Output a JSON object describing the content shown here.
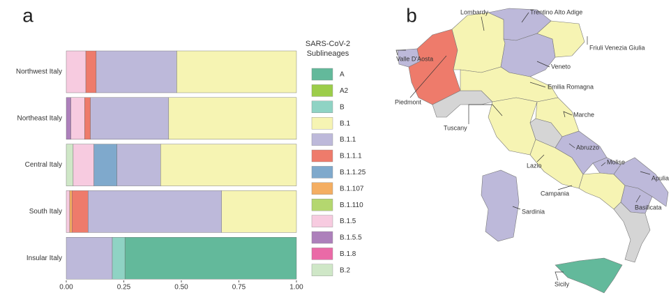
{
  "chart_data": {
    "type": "stacked_barh",
    "panel_label": "a",
    "legend_title": "SARS-CoV-2 Sublineages",
    "categories": [
      "Northwest Italy",
      "Northeast Italy",
      "Central Italy",
      "South Italy",
      "Insular Italy"
    ],
    "series": [
      {
        "name": "A",
        "color": "#63b99b",
        "values": [
          0,
          0,
          0,
          0,
          0.745
        ]
      },
      {
        "name": "A2",
        "color": "#9ccd4a",
        "values": [
          0,
          0,
          0,
          0,
          0
        ]
      },
      {
        "name": "B",
        "color": "#8fd3c4",
        "values": [
          0,
          0,
          0,
          0,
          0.055
        ]
      },
      {
        "name": "B.1",
        "color": "#f6f4b3",
        "values": [
          0.52,
          0.555,
          0.59,
          0.325,
          0
        ]
      },
      {
        "name": "B.1.1",
        "color": "#bdb9da",
        "values": [
          0.35,
          0.34,
          0.19,
          0.58,
          0.2
        ]
      },
      {
        "name": "B.1.1.1",
        "color": "#ee7b6b",
        "values": [
          0.045,
          0.025,
          0,
          0.07,
          0
        ]
      },
      {
        "name": "B.1.1.25",
        "color": "#7fa9cc",
        "values": [
          0,
          0,
          0.1,
          0,
          0
        ]
      },
      {
        "name": "B.1.107",
        "color": "#f4ae62",
        "values": [
          0,
          0,
          0,
          0.01,
          0
        ]
      },
      {
        "name": "B.1.110",
        "color": "#b4d76f",
        "values": [
          0,
          0,
          0,
          0,
          0
        ]
      },
      {
        "name": "B.1.5",
        "color": "#f7cbe0",
        "values": [
          0.085,
          0.06,
          0.09,
          0.015,
          0
        ]
      },
      {
        "name": "B.1.5.5",
        "color": "#ad80bb",
        "values": [
          0,
          0.02,
          0,
          0,
          0
        ]
      },
      {
        "name": "B.1.8",
        "color": "#ea6aa7",
        "values": [
          0,
          0,
          0,
          0,
          0
        ]
      },
      {
        "name": "B.2",
        "color": "#cfe7c7",
        "values": [
          0,
          0,
          0.03,
          0,
          0
        ]
      }
    ],
    "xlim": [
      0,
      1
    ],
    "xticks": [
      {
        "value": 0,
        "label": "0.00"
      },
      {
        "value": 0.25,
        "label": "0.25"
      },
      {
        "value": 0.5,
        "label": "0.50"
      },
      {
        "value": 0.75,
        "label": "0.75"
      },
      {
        "value": 1,
        "label": "1.00"
      }
    ]
  },
  "map": {
    "panel_label": "b",
    "regions": [
      "Lombardy",
      "Trentino Alto Adige",
      "Friuli Venezia Giulia",
      "Valle D'Aosta",
      "Veneto",
      "Piedmont",
      "Emilia Romagna",
      "Marche",
      "Tuscany",
      "Abruzzo",
      "Molise",
      "Apulia",
      "Lazio",
      "Campania",
      "Basilicata",
      "Sardinia",
      "Sicily"
    ]
  }
}
